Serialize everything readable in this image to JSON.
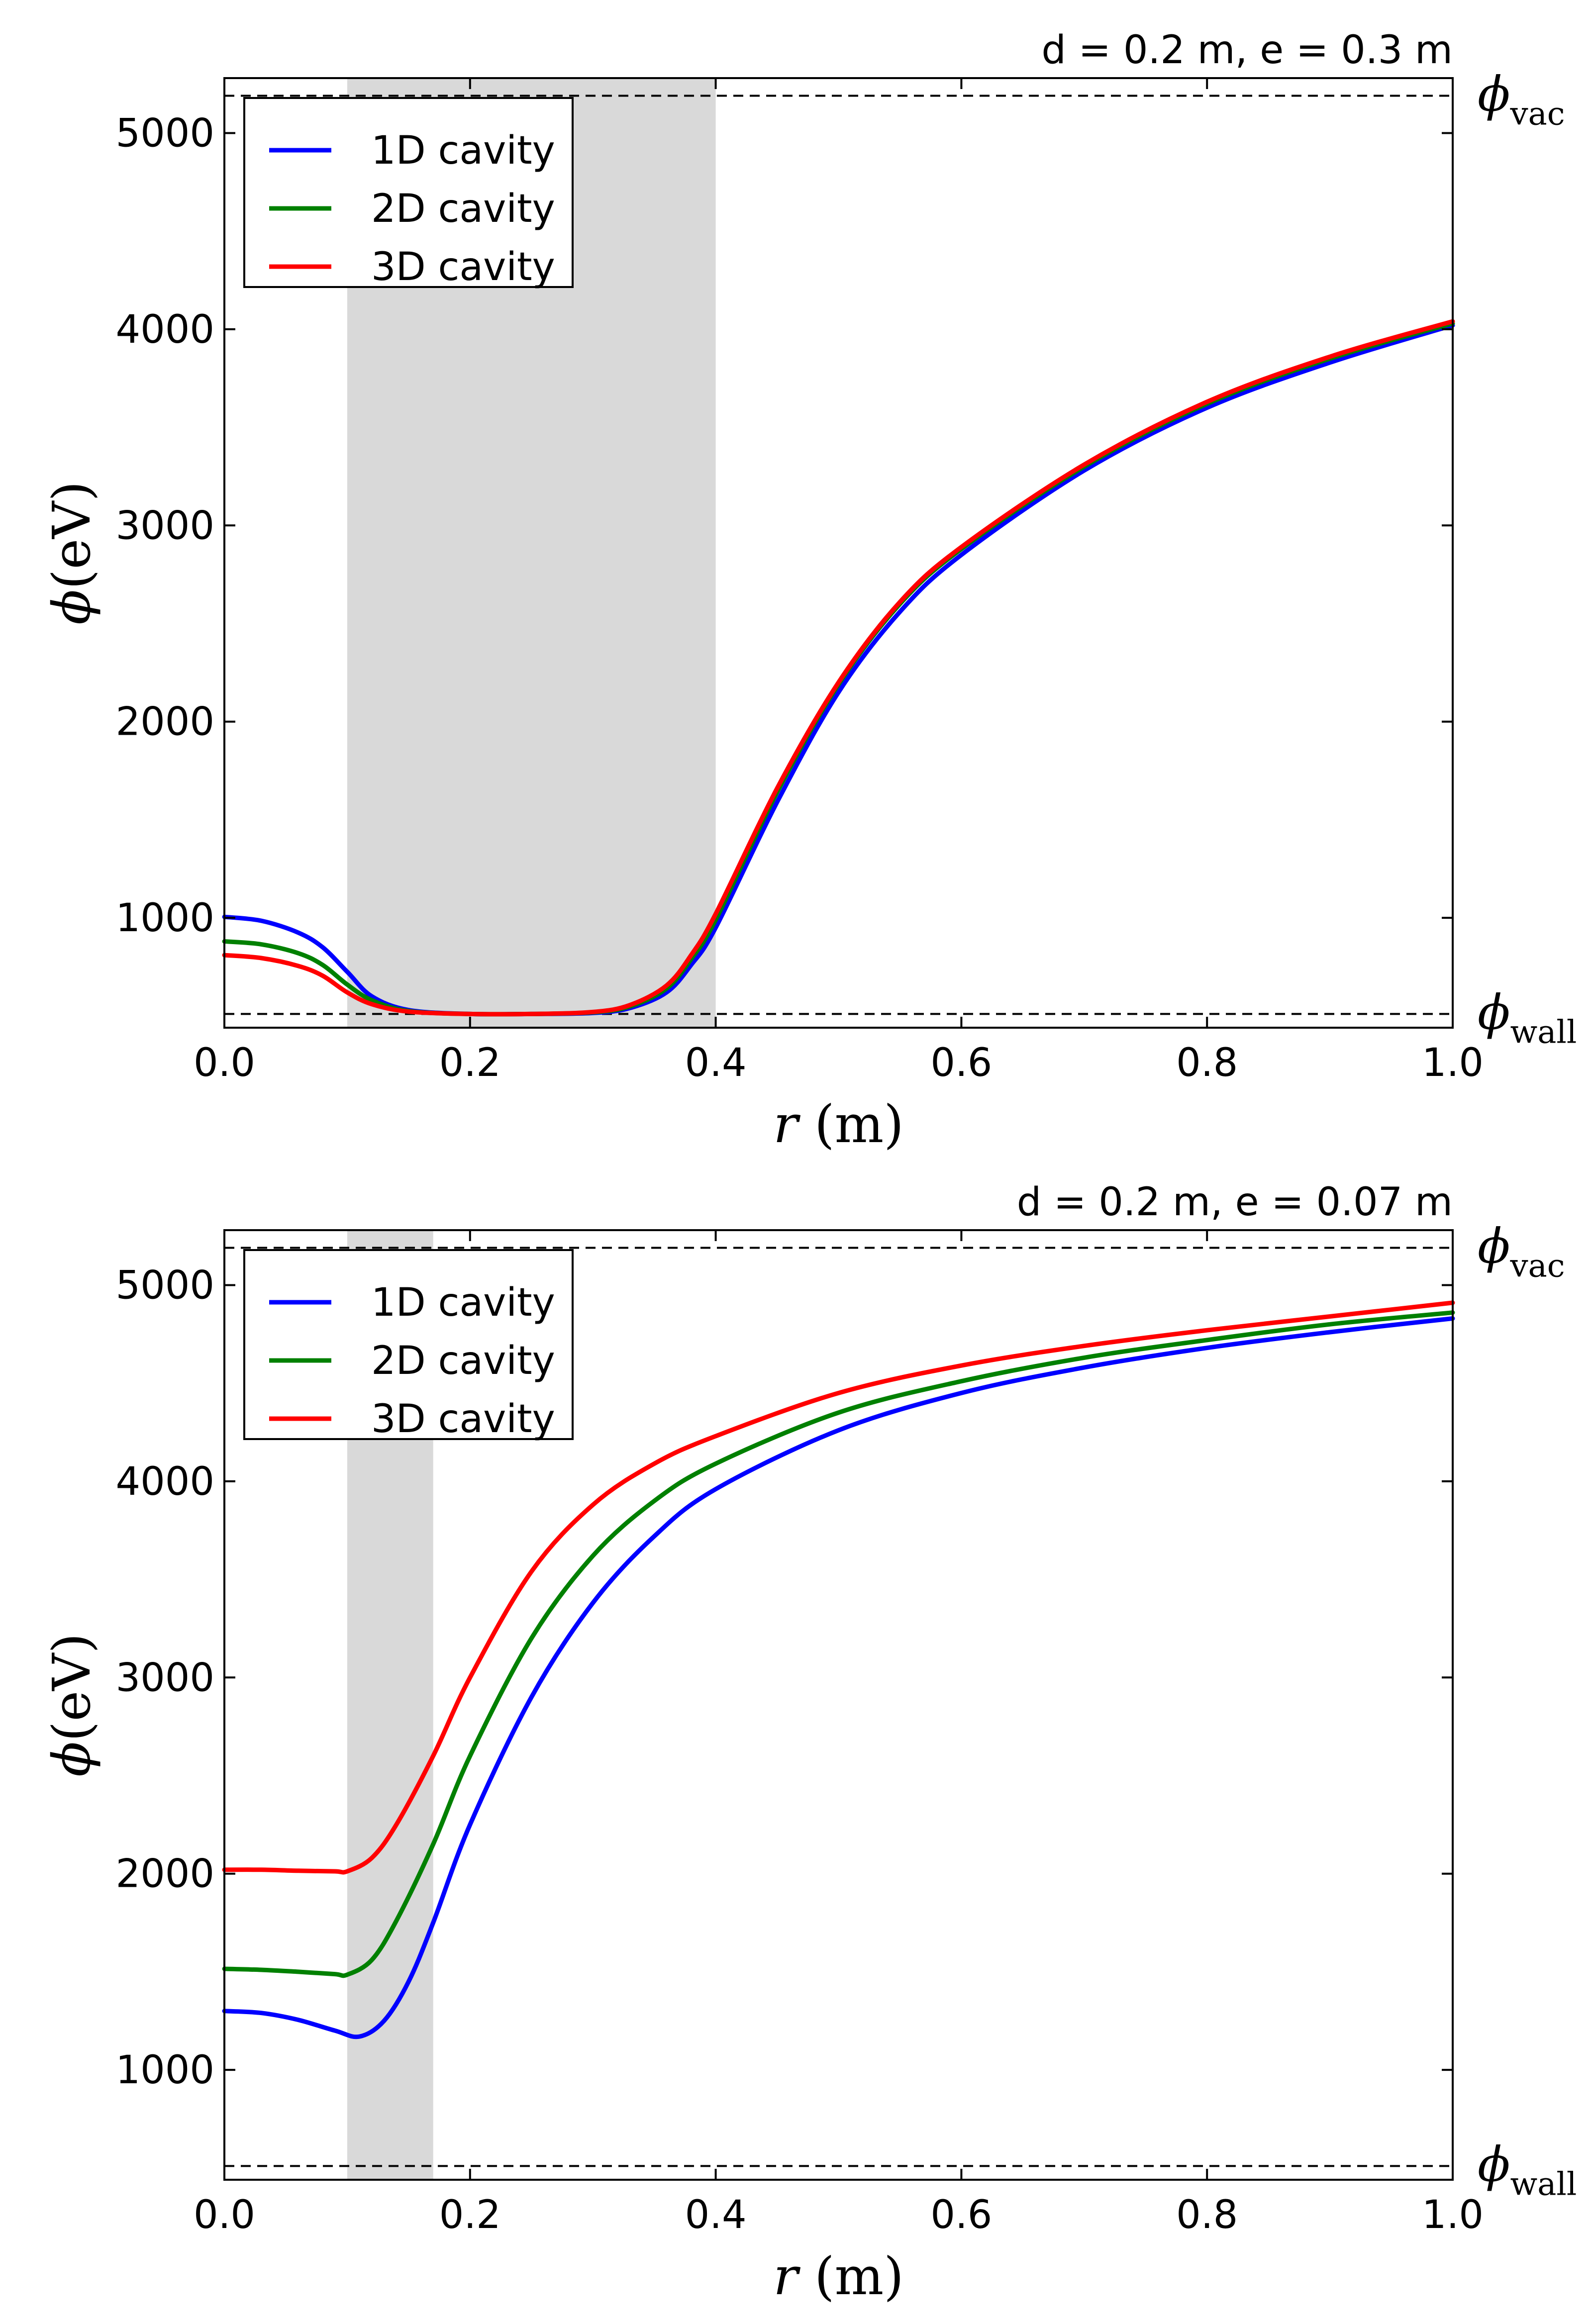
{
  "chart_data": [
    {
      "type": "line",
      "title": "d = 0.2 m, e = 0.3 m",
      "xlabel_var": "r",
      "xlabel_unit": "(m)",
      "ylabel_var": "ϕ",
      "ylabel_unit": "(eV)",
      "xlim": [
        0.0,
        1.0
      ],
      "ylim": [
        440,
        5280
      ],
      "xticks": [
        "0.0",
        "0.2",
        "0.4",
        "0.6",
        "0.8",
        "1.0"
      ],
      "yticks": [
        "1000",
        "2000",
        "3000",
        "4000",
        "5000"
      ],
      "shaded_region": [
        0.1,
        0.4
      ],
      "ref_lines": [
        {
          "name": "vac",
          "symbol": "ϕ",
          "sub": "vac",
          "value": 5190
        },
        {
          "name": "wall",
          "symbol": "ϕ",
          "sub": "wall",
          "value": 510
        }
      ],
      "legend_position": "upper-left",
      "series": [
        {
          "name": "1D cavity",
          "color": "#0000ff",
          "x": [
            0,
            0.03,
            0.06,
            0.08,
            0.1,
            0.12,
            0.15,
            0.2,
            0.25,
            0.3,
            0.33,
            0.36,
            0.38,
            0.4,
            0.45,
            0.5,
            0.55,
            0.6,
            0.7,
            0.8,
            0.9,
            1.0
          ],
          "y": [
            1005,
            985,
            925,
            850,
            725,
            600,
            530,
            510,
            510,
            515,
            540,
            620,
            760,
            950,
            1590,
            2150,
            2560,
            2850,
            3280,
            3600,
            3830,
            4020
          ]
        },
        {
          "name": "2D cavity",
          "color": "#008000",
          "x": [
            0,
            0.03,
            0.06,
            0.08,
            0.1,
            0.12,
            0.15,
            0.2,
            0.25,
            0.3,
            0.33,
            0.36,
            0.38,
            0.4,
            0.45,
            0.5,
            0.55,
            0.6,
            0.7,
            0.8,
            0.9,
            1.0
          ],
          "y": [
            880,
            865,
            820,
            760,
            660,
            580,
            525,
            510,
            510,
            518,
            548,
            640,
            790,
            990,
            1640,
            2190,
            2600,
            2880,
            3300,
            3620,
            3850,
            4030
          ]
        },
        {
          "name": "3D cavity",
          "color": "#ff0000",
          "x": [
            0,
            0.03,
            0.06,
            0.08,
            0.1,
            0.12,
            0.15,
            0.2,
            0.25,
            0.3,
            0.33,
            0.36,
            0.38,
            0.4,
            0.45,
            0.5,
            0.55,
            0.6,
            0.7,
            0.8,
            0.9,
            1.0
          ],
          "y": [
            810,
            795,
            755,
            705,
            620,
            560,
            522,
            510,
            510,
            520,
            555,
            655,
            810,
            1020,
            1660,
            2200,
            2610,
            2890,
            3310,
            3630,
            3860,
            4040
          ]
        }
      ]
    },
    {
      "type": "line",
      "title": "d = 0.2 m, e = 0.07 m",
      "xlabel_var": "r",
      "xlabel_unit": "(m)",
      "ylabel_var": "ϕ",
      "ylabel_unit": "(eV)",
      "xlim": [
        0.0,
        1.0
      ],
      "ylim": [
        440,
        5280
      ],
      "xticks": [
        "0.0",
        "0.2",
        "0.4",
        "0.6",
        "0.8",
        "1.0"
      ],
      "yticks": [
        "1000",
        "2000",
        "3000",
        "4000",
        "5000"
      ],
      "shaded_region": [
        0.1,
        0.17
      ],
      "ref_lines": [
        {
          "name": "vac",
          "symbol": "ϕ",
          "sub": "vac",
          "value": 5190
        },
        {
          "name": "wall",
          "symbol": "ϕ",
          "sub": "wall",
          "value": 510
        }
      ],
      "legend_position": "upper-left",
      "series": [
        {
          "name": "1D cavity",
          "color": "#0000ff",
          "x": [
            0,
            0.03,
            0.06,
            0.09,
            0.11,
            0.13,
            0.15,
            0.17,
            0.2,
            0.25,
            0.3,
            0.35,
            0.4,
            0.5,
            0.6,
            0.7,
            0.8,
            0.9,
            1.0
          ],
          "y": [
            1300,
            1290,
            1255,
            1200,
            1170,
            1250,
            1450,
            1750,
            2250,
            2900,
            3380,
            3720,
            3960,
            4260,
            4450,
            4580,
            4680,
            4760,
            4830
          ]
        },
        {
          "name": "2D cavity",
          "color": "#008000",
          "x": [
            0,
            0.03,
            0.06,
            0.09,
            0.1,
            0.12,
            0.14,
            0.17,
            0.2,
            0.25,
            0.3,
            0.35,
            0.4,
            0.5,
            0.6,
            0.7,
            0.8,
            0.9,
            1.0
          ],
          "y": [
            1515,
            1510,
            1500,
            1488,
            1485,
            1560,
            1760,
            2150,
            2600,
            3200,
            3620,
            3900,
            4090,
            4350,
            4510,
            4630,
            4720,
            4800,
            4860
          ]
        },
        {
          "name": "3D cavity",
          "color": "#ff0000",
          "x": [
            0,
            0.03,
            0.06,
            0.09,
            0.1,
            0.12,
            0.14,
            0.17,
            0.2,
            0.25,
            0.3,
            0.35,
            0.4,
            0.5,
            0.6,
            0.7,
            0.8,
            0.9,
            1.0
          ],
          "y": [
            2020,
            2020,
            2015,
            2012,
            2012,
            2080,
            2250,
            2600,
            3000,
            3540,
            3880,
            4090,
            4230,
            4450,
            4590,
            4690,
            4770,
            4840,
            4910
          ]
        }
      ]
    }
  ]
}
